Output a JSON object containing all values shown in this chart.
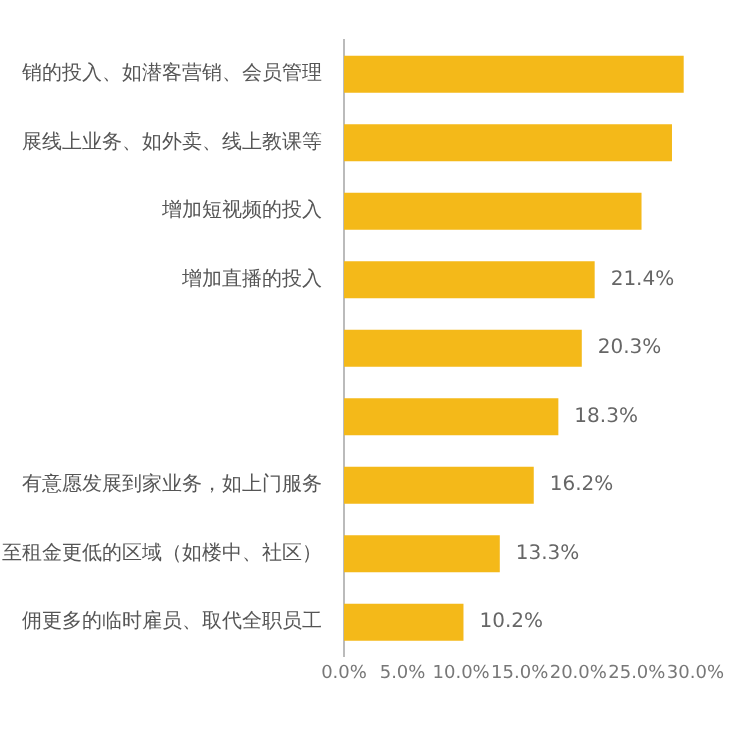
{
  "chart_data": {
    "type": "bar",
    "orientation": "horizontal",
    "categories": [
      "销的投入、如潜客营销、会员管理",
      "展线上业务、如外卖、线上教课等",
      "增加短视频的投入",
      "增加直播的投入",
      null,
      null,
      "有意愿发展到家业务，如上门服务",
      "至租金更低的区域（如楼中、社区）",
      "佣更多的临时雇员、取代全职员工"
    ],
    "values": [
      29,
      28,
      25.4,
      21.4,
      20.3,
      18.3,
      16.2,
      13.3,
      10.2
    ],
    "value_labels": [
      null,
      null,
      null,
      "21.4%",
      "20.3%",
      "18.3%",
      "16.2%",
      "13.3%",
      "10.2%"
    ],
    "color": "#f4b919",
    "xlim": [
      0,
      30
    ],
    "xticks": [
      {
        "value": 0,
        "label": "0.0%"
      },
      {
        "value": 5,
        "label": "5.0%"
      },
      {
        "value": 10,
        "label": "10.0%"
      },
      {
        "value": 15,
        "label": "15.0%"
      },
      {
        "value": 20,
        "label": "20.0%"
      },
      {
        "value": 25,
        "label": "25.0%"
      },
      {
        "value": 30,
        "label": "30.0%"
      }
    ],
    "grid": false,
    "legend": false
  }
}
